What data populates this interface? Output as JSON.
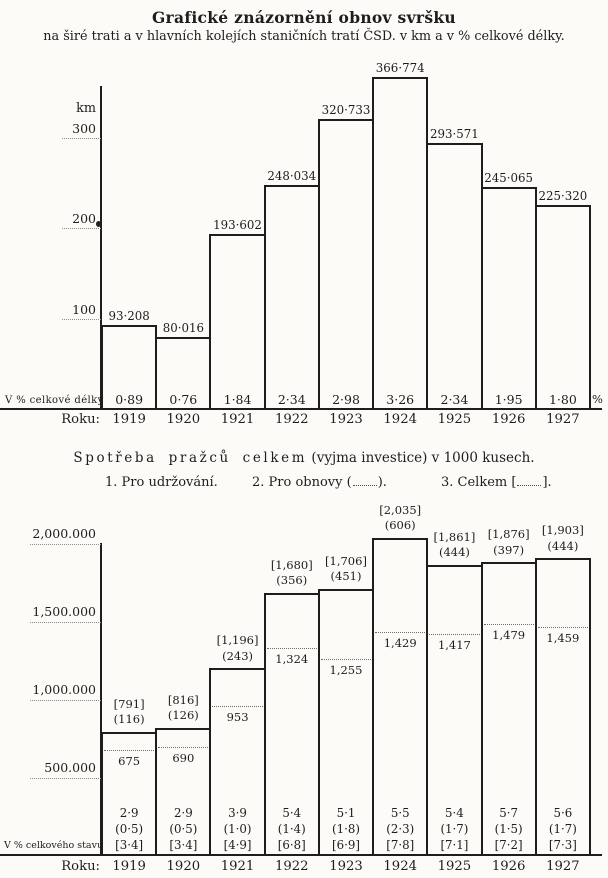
{
  "page": {
    "background": "#fcfbf8",
    "ink": "#1d1d1d"
  },
  "header": {
    "title": "Grafické znázornění obnov svršku",
    "subtitle": "na širé trati a v hlavních kolejích staničních tratí ČSD. v km a v % celkové délky."
  },
  "chart_data": [
    {
      "type": "bar",
      "title": "Grafické znázornění obnov svršku",
      "subtitle": "na širé trati a v hlavních kolejích staničních tratí ČSD. v km a v % celkové délky.",
      "ylabel": "km",
      "ylim": [
        0,
        380
      ],
      "grid": "dotted stubs left of axis",
      "yticks": [
        {
          "value": 100,
          "label": "100"
        },
        {
          "value": 200,
          "label": "200"
        },
        {
          "value": 300,
          "label": "300"
        }
      ],
      "categories": [
        "1919",
        "1920",
        "1921",
        "1922",
        "1923",
        "1924",
        "1925",
        "1926",
        "1927"
      ],
      "values": [
        93.208,
        80.016,
        193.602,
        248.034,
        320.733,
        366.774,
        293.571,
        245.065,
        225.32
      ],
      "value_labels": [
        "93·208",
        "80·016",
        "193·602",
        "248·034",
        "320·733",
        "366·774",
        "293·571",
        "245·065",
        "225·320"
      ],
      "percent_row": {
        "label": "V % celkové délky",
        "values": [
          "0·89",
          "0·76",
          "1·84",
          "2·34",
          "2·98",
          "3·26",
          "2·34",
          "1·95",
          "1·80"
        ],
        "unit": "%"
      },
      "roku_label": "Roku:"
    },
    {
      "type": "bar",
      "title_spaced": "Spotřeba pražců celkem",
      "title_rest": "(vyjma investice) v 1000 kusech.",
      "legend": [
        {
          "prefix": "1. Pro udržování.",
          "dotted": false,
          "suffix": ""
        },
        {
          "prefix": "2. Pro obnovy (",
          "dotted": true,
          "suffix": ")."
        },
        {
          "prefix": "3. Celkem [",
          "dotted": true,
          "suffix": "]."
        }
      ],
      "unit": "1000 kusů",
      "ylim": [
        0,
        2100
      ],
      "yticks": [
        {
          "value": 500,
          "label": "500.000"
        },
        {
          "value": 1000,
          "label": "1,000.000"
        },
        {
          "value": 1500,
          "label": "1,500.000"
        },
        {
          "value": 2000,
          "label": "2,000.000"
        }
      ],
      "categories": [
        "1919",
        "1920",
        "1921",
        "1922",
        "1923",
        "1924",
        "1925",
        "1926",
        "1927"
      ],
      "series": [
        {
          "name": "Celkem",
          "values": [
            791,
            816,
            1196,
            1680,
            1706,
            2035,
            1861,
            1876,
            1903
          ],
          "labels": [
            "[791]",
            "[816]",
            "[1,196]",
            "[1,680]",
            "[1,706]",
            "[2,035]",
            "[1,861]",
            "[1,876]",
            "[1,903]"
          ]
        },
        {
          "name": "Pro obnovy",
          "values": [
            116,
            126,
            243,
            356,
            451,
            606,
            444,
            397,
            444
          ],
          "labels": [
            "(116)",
            "(126)",
            "(243)",
            "(356)",
            "(451)",
            "(606)",
            "(444)",
            "(397)",
            "(444)"
          ]
        },
        {
          "name": "Pro udržování",
          "values": [
            675,
            690,
            953,
            1324,
            1255,
            1429,
            1417,
            1479,
            1459
          ],
          "labels": [
            "675",
            "690",
            "953",
            "1,324",
            "1,255",
            "1,429",
            "1,417",
            "1,479",
            "1,459"
          ]
        }
      ],
      "percent_rows": {
        "label": "V % celkového stavu",
        "rows": [
          [
            "2·9",
            "2·9",
            "3·9",
            "5·4",
            "5·1",
            "5·5",
            "5·4",
            "5·7",
            "5·6"
          ],
          [
            "(0·5)",
            "(0·5)",
            "(1·0)",
            "(1·4)",
            "(1·8)",
            "(2·3)",
            "(1·7)",
            "(1·5)",
            "(1·7)"
          ],
          [
            "[3·4]",
            "[3·4]",
            "[4·9]",
            "[6·8]",
            "[6·9]",
            "[7·8]",
            "[7·1]",
            "[7·2]",
            "[7·3]"
          ]
        ]
      },
      "roku_label": "Roku:"
    }
  ]
}
